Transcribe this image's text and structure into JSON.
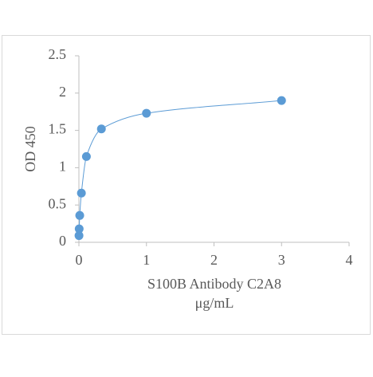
{
  "chart_data": {
    "type": "scatter",
    "x_label": [
      "S100B Antibody  C2A8",
      "μg/mL"
    ],
    "y_label": "OD 450",
    "series": [
      {
        "name": "S100B",
        "color": "#5b9bd5",
        "x": [
          0.00137,
          0.0041,
          0.0123,
          0.037,
          0.111,
          0.333,
          1,
          3
        ],
        "values": [
          0.09,
          0.18,
          0.36,
          0.66,
          1.15,
          1.52,
          1.73,
          1.9
        ]
      }
    ],
    "xlim": [
      0,
      4
    ],
    "xticks": [
      0,
      1,
      2,
      3,
      4
    ],
    "ylim": [
      0,
      2.5
    ],
    "yticks": [
      0,
      0.5,
      1,
      1.5,
      2,
      2.5
    ],
    "grid": false,
    "smooth_line": true
  }
}
